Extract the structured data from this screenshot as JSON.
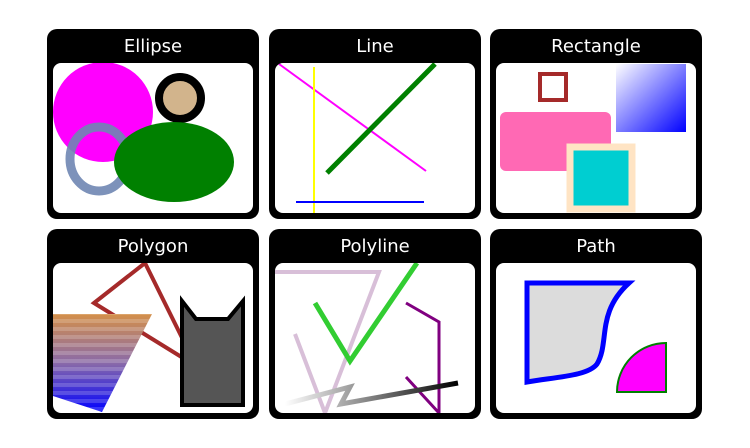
{
  "cards": [
    {
      "title": "Ellipse"
    },
    {
      "title": "Line"
    },
    {
      "title": "Rectangle"
    },
    {
      "title": "Polygon"
    },
    {
      "title": "Polyline"
    },
    {
      "title": "Path"
    }
  ],
  "colors": {
    "card_background": "#000000",
    "title_text": "#ffffff",
    "panel_background": "#ffffff",
    "magenta": "#ff00ff",
    "tan": "#d2b48c",
    "green": "#008000",
    "slate_blue": "#7a8fb8",
    "yellow": "#ffff00",
    "blue": "#0000ff",
    "brown": "#a52a2a",
    "hot_pink": "#ff69b4",
    "turquoise": "#00ced1",
    "bisque": "#ffe4c4",
    "lime_green": "#32cd32",
    "purple": "#800080",
    "thistle": "#d8bfd8",
    "dim_gray": "#555555",
    "light_gray": "#dcdcdc"
  }
}
